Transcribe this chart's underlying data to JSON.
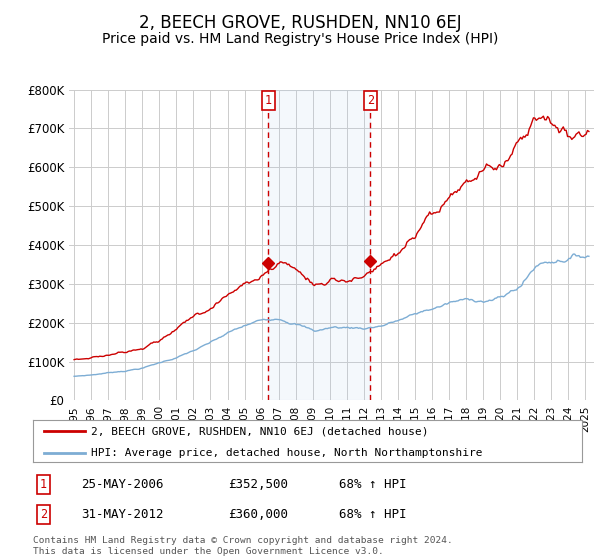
{
  "title": "2, BEECH GROVE, RUSHDEN, NN10 6EJ",
  "subtitle": "Price paid vs. HM Land Registry's House Price Index (HPI)",
  "title_fontsize": 12,
  "subtitle_fontsize": 10,
  "background_color": "#ffffff",
  "plot_bg_color": "#ffffff",
  "grid_color": "#cccccc",
  "ylim": [
    0,
    800000
  ],
  "ytick_labels": [
    "£0",
    "£100K",
    "£200K",
    "£300K",
    "£400K",
    "£500K",
    "£600K",
    "£700K",
    "£800K"
  ],
  "ytick_values": [
    0,
    100000,
    200000,
    300000,
    400000,
    500000,
    600000,
    700000,
    800000
  ],
  "hpi_color": "#7dadd4",
  "price_color": "#cc0000",
  "sale1_date": "25-MAY-2006",
  "sale1_price": 352500,
  "sale1_hpi": "68% ↑ HPI",
  "sale2_date": "31-MAY-2012",
  "sale2_price": 360000,
  "sale2_hpi": "68% ↑ HPI",
  "legend_label1": "2, BEECH GROVE, RUSHDEN, NN10 6EJ (detached house)",
  "legend_label2": "HPI: Average price, detached house, North Northamptonshire",
  "footnote": "Contains HM Land Registry data © Crown copyright and database right 2024.\nThis data is licensed under the Open Government Licence v3.0.",
  "sale1_x": 2006.38,
  "sale2_x": 2012.38,
  "xmin": 1994.7,
  "xmax": 2025.5
}
